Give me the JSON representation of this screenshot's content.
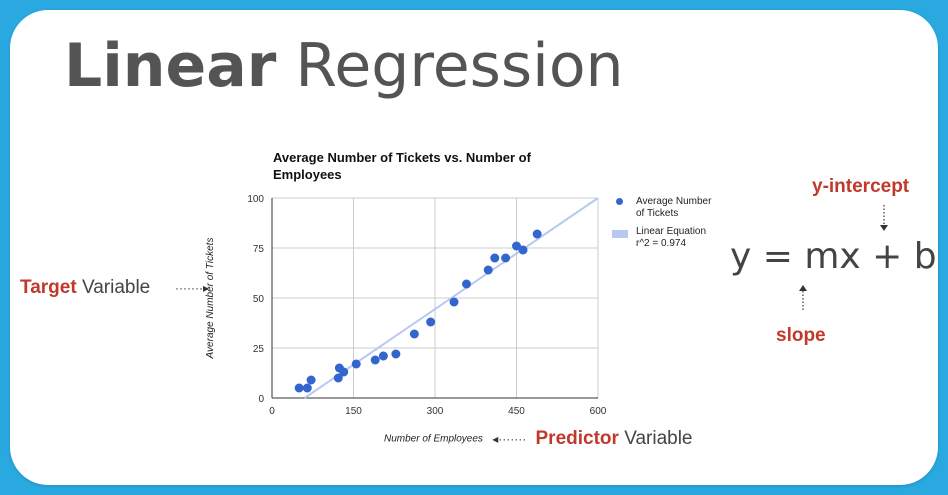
{
  "slide": {
    "title_bold": "Linear",
    "title_rest": "Regression"
  },
  "chart_data": {
    "type": "scatter",
    "title": "Average Number of Tickets vs. Number of Employees",
    "xlabel": "Number of Employees",
    "ylabel": "Average Number of Tickets",
    "xlim": [
      0,
      600
    ],
    "ylim": [
      0,
      100
    ],
    "xticks": [
      "0",
      "150",
      "300",
      "450",
      "600"
    ],
    "yticks": [
      "0",
      "25",
      "50",
      "75",
      "100"
    ],
    "grid": true,
    "legend_position": "right",
    "series": [
      {
        "name": "Average Number of Tickets",
        "color": "#3366cc",
        "points": [
          [
            50,
            5
          ],
          [
            65,
            5
          ],
          [
            72,
            9
          ],
          [
            122,
            10
          ],
          [
            124,
            15
          ],
          [
            132,
            13
          ],
          [
            155,
            17
          ],
          [
            190,
            19
          ],
          [
            205,
            21
          ],
          [
            228,
            22
          ],
          [
            262,
            32
          ],
          [
            292,
            38
          ],
          [
            335,
            48
          ],
          [
            358,
            57
          ],
          [
            398,
            64
          ],
          [
            410,
            70
          ],
          [
            430,
            70
          ],
          [
            450,
            76
          ],
          [
            462,
            74
          ],
          [
            488,
            82
          ]
        ]
      },
      {
        "name": "Linear Equation",
        "sublabel": "r^2 = 0.974",
        "color": "#b7c9ef",
        "line": [
          [
            60,
            0
          ],
          [
            600,
            100
          ]
        ]
      }
    ]
  },
  "annotations": {
    "target_bold": "Target",
    "target_rest": "Variable",
    "predictor_bold": "Predictor",
    "predictor_rest": "Variable",
    "equation": "y = mx + b",
    "y_intercept": "y-intercept",
    "slope": "slope"
  }
}
